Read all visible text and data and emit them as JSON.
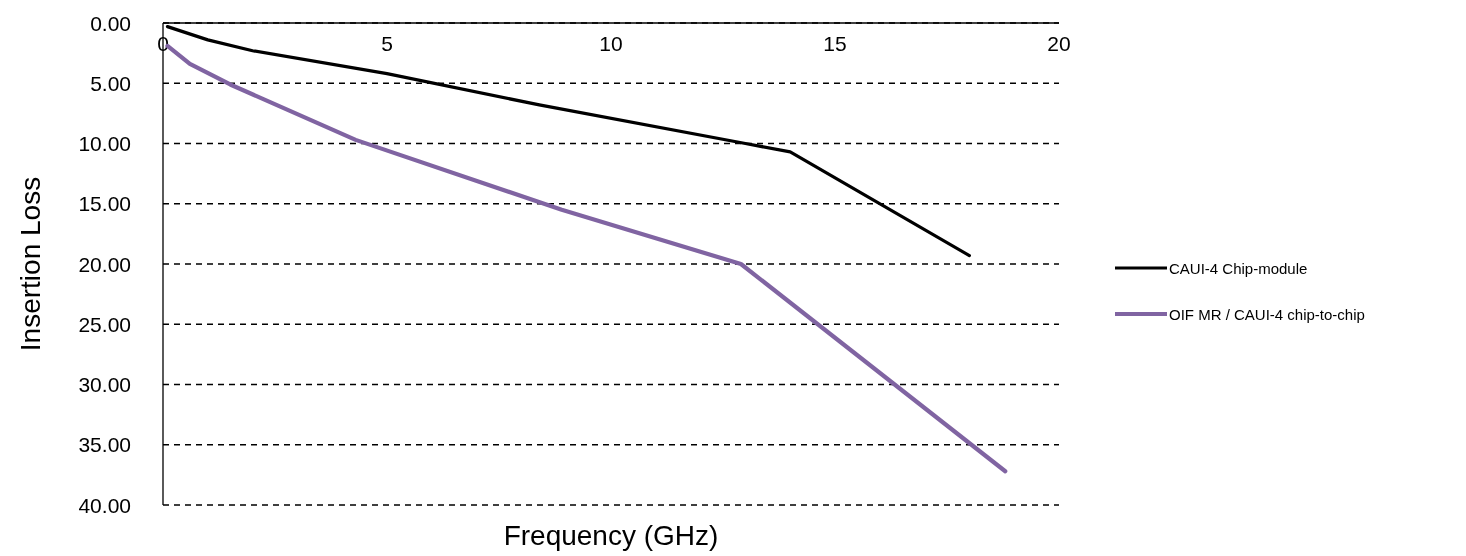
{
  "chart_data": {
    "type": "line",
    "xlabel": "Frequency (GHz)",
    "ylabel": "Insertion Loss",
    "xlim": [
      0,
      20
    ],
    "xticks": [
      0,
      5,
      10,
      15,
      20
    ],
    "ylim": [
      40,
      0
    ],
    "yticks": [
      {
        "value": 0,
        "label": "0.00"
      },
      {
        "value": 5,
        "label": "5.00"
      },
      {
        "value": 10,
        "label": "10.00"
      },
      {
        "value": 15,
        "label": "15.00"
      },
      {
        "value": 20,
        "label": "20.00"
      },
      {
        "value": 25,
        "label": "25.00"
      },
      {
        "value": 30,
        "label": "30.00"
      },
      {
        "value": 35,
        "label": "35.00"
      },
      {
        "value": 40,
        "label": "40.00"
      }
    ],
    "grid": "y",
    "legend": "right",
    "marker": "none",
    "series": [
      {
        "name": "CAUI-4 Chip-module",
        "color": "#000000",
        "x": [
          0.1,
          1,
          2,
          5,
          8.4,
          13,
          14,
          18
        ],
        "values": [
          0.3,
          1.4,
          2.3,
          4.2,
          6.8,
          10,
          10.7,
          19.3
        ]
      },
      {
        "name": "OIF MR / CAUI-4 chip-to-chip",
        "color": "#8064a2",
        "x": [
          0.1,
          0.6,
          1.5,
          4.3,
          8.9,
          12.9,
          18.8
        ],
        "values": [
          1.9,
          3.4,
          5.1,
          9.7,
          15.5,
          20,
          37.2
        ]
      }
    ]
  }
}
